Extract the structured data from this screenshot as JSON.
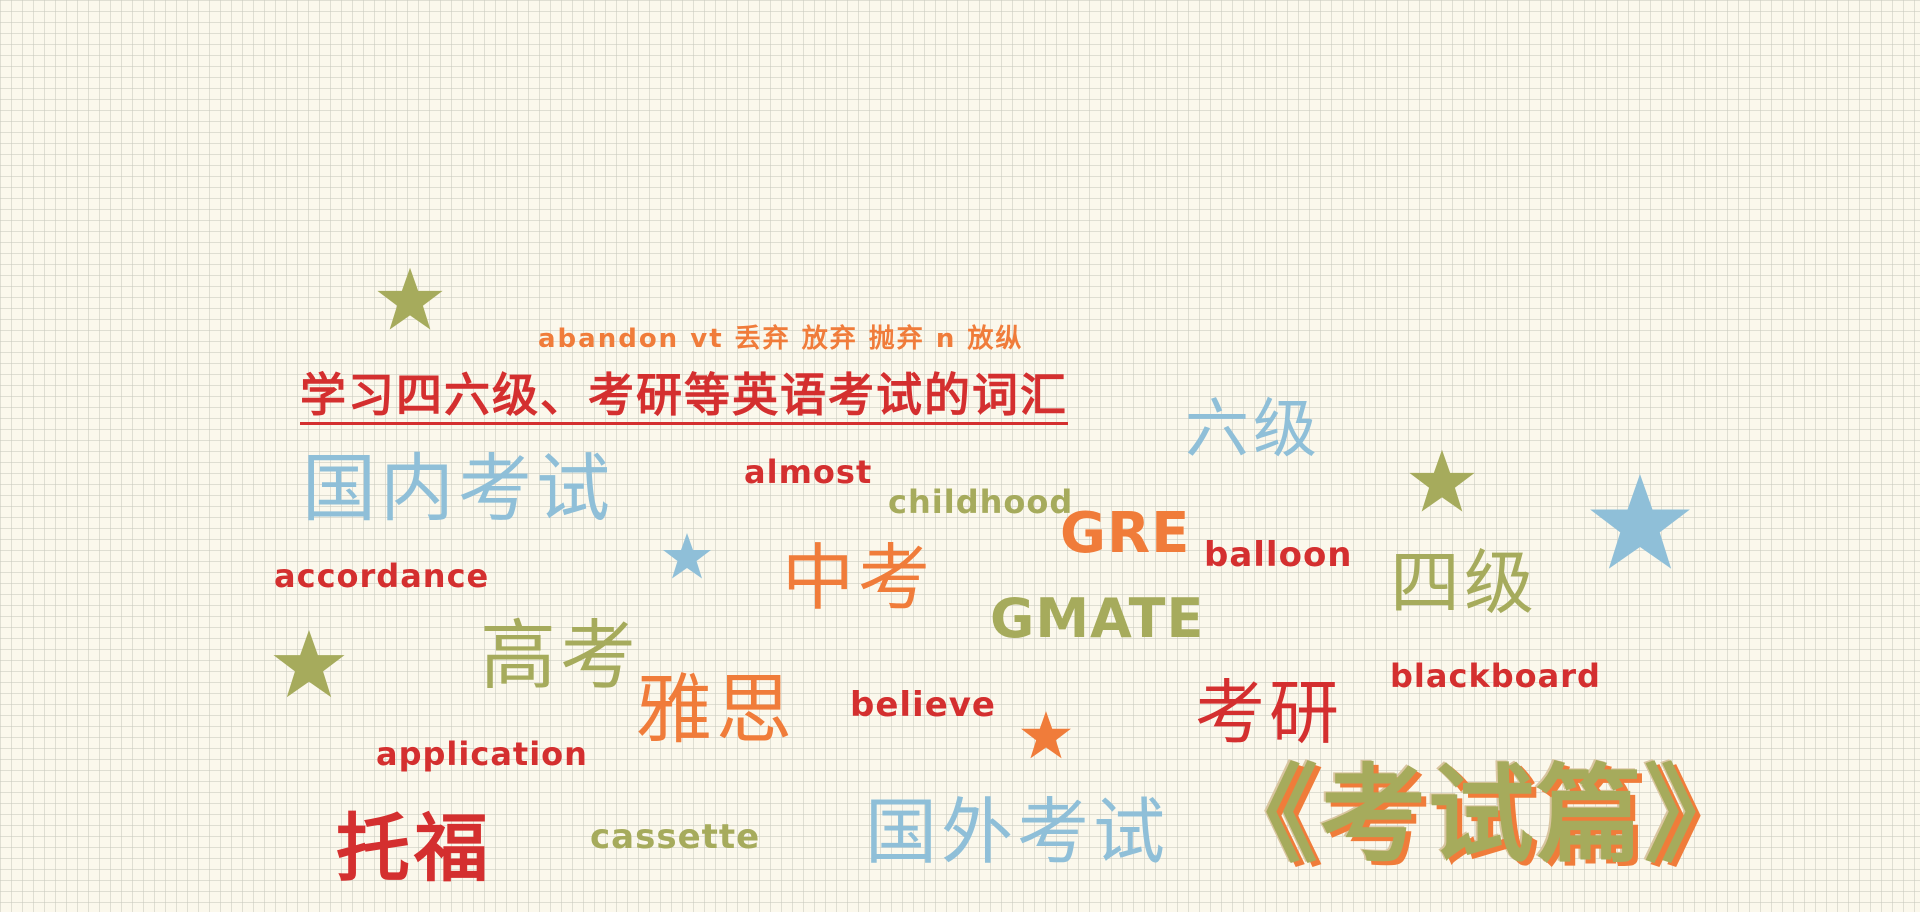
{
  "subtitle": "abandon vt 丢弃 放弃 抛弃 n 放纵",
  "heading": "学习四六级、考研等英语考试的词汇",
  "title": "《考试篇》",
  "words": {
    "guonei": "国内考试",
    "liuji": "六级",
    "siji": "四级",
    "gaokao": "高考",
    "zhongkao": "中考",
    "yasi": "雅思",
    "kaoyan": "考研",
    "tuofu": "托福",
    "guowai": "国外考试",
    "almost": "almost",
    "childhood": "childhood",
    "gre": "GRE",
    "balloon": "balloon",
    "accordance": "accordance",
    "gmate": "GMATE",
    "blackboard": "blackboard",
    "believe": "believe",
    "application": "application",
    "cassette": "cassette"
  },
  "colors": {
    "red": "#d42f2f",
    "orange": "#f07c3a",
    "olive": "#a6ab5c",
    "blue": "#8fbfd8",
    "background": "#fbf8ec"
  },
  "icons": [
    "star-icon"
  ]
}
